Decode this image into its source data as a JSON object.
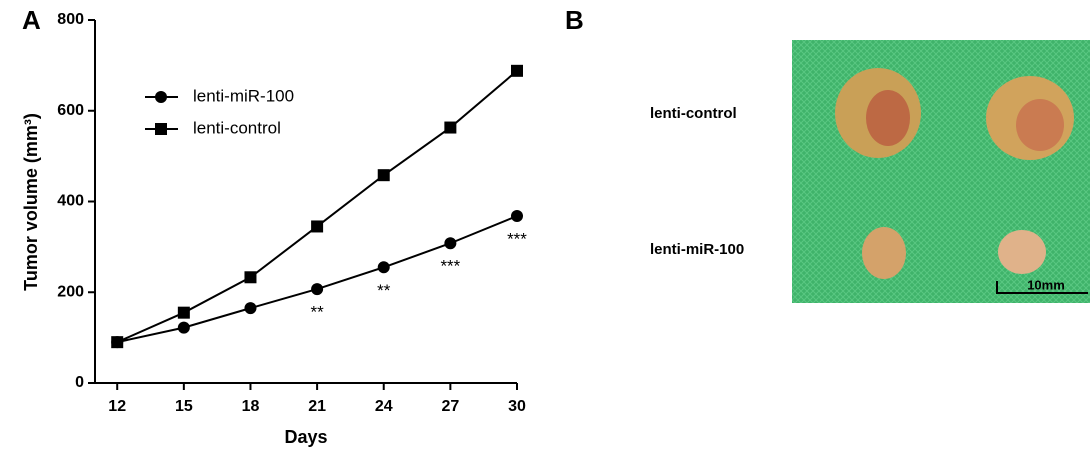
{
  "chart_data": {
    "type": "line",
    "panel": "A",
    "x_label": "Days",
    "y_label": "Tumor volume (mm³)",
    "x": [
      12,
      15,
      18,
      21,
      24,
      27,
      30
    ],
    "series": [
      {
        "name": "lenti-miR-100",
        "color": "#000000",
        "marker": "circle",
        "values": [
          90,
          122,
          165,
          207,
          255,
          308,
          368
        ]
      },
      {
        "name": "lenti-control",
        "color": "#000000",
        "marker": "square",
        "values": [
          90,
          155,
          233,
          345,
          458,
          563,
          688
        ]
      }
    ],
    "annotations": [
      {
        "x": 21,
        "text": "**"
      },
      {
        "x": 24,
        "text": "**"
      },
      {
        "x": 27,
        "text": "***"
      },
      {
        "x": 30,
        "text": "***"
      }
    ],
    "xlim": [
      11,
      30
    ],
    "xticks": [
      12,
      15,
      18,
      21,
      24,
      27,
      30
    ],
    "ylim": [
      0,
      800
    ],
    "yticks": [
      0,
      200,
      400,
      600,
      800
    ],
    "grid": false,
    "legend": "top-left"
  },
  "photo": {
    "panel": "B",
    "labels": [
      "lenti-control",
      "lenti-miR-100"
    ],
    "scale_bar": "10mm"
  }
}
